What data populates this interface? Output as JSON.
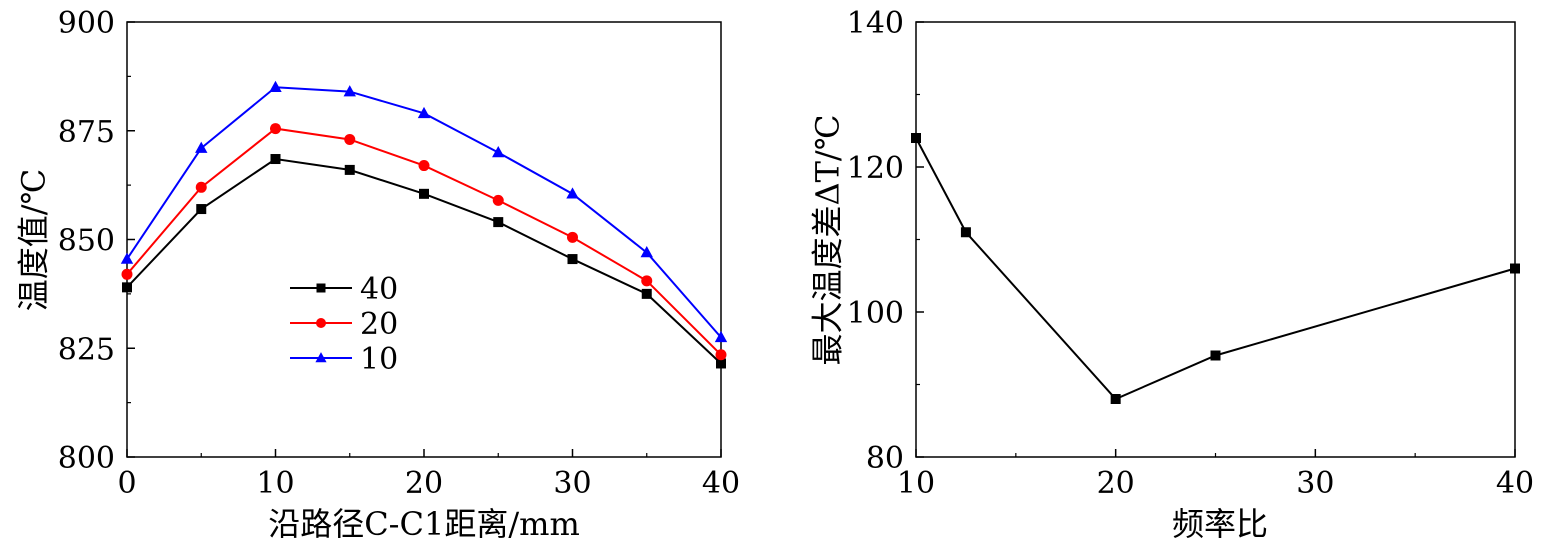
{
  "chart_data": [
    {
      "type": "line",
      "xlabel": "沿路径C-C1距离/mm",
      "ylabel": "温度值/℃",
      "xlim": [
        0,
        40
      ],
      "ylim": [
        800,
        900
      ],
      "xticks": [
        0,
        10,
        20,
        30,
        40
      ],
      "yticks": [
        800,
        825,
        850,
        875,
        900
      ],
      "grid": false,
      "legend_position": "center-left",
      "x": [
        0,
        5,
        10,
        15,
        20,
        25,
        30,
        35,
        40
      ],
      "series": [
        {
          "name": "40",
          "color": "#000000",
          "marker": "square",
          "values": [
            839,
            857,
            868.5,
            866,
            860.5,
            854,
            845.5,
            837.5,
            821.5
          ]
        },
        {
          "name": "20",
          "color": "#ff0000",
          "marker": "circle",
          "values": [
            842,
            862,
            875.5,
            873,
            867,
            859,
            850.5,
            840.5,
            823.5
          ]
        },
        {
          "name": "10",
          "color": "#0000ff",
          "marker": "triangle",
          "values": [
            845.5,
            871,
            885,
            884,
            879,
            870,
            860.5,
            847,
            827.5
          ]
        }
      ]
    },
    {
      "type": "line",
      "xlabel": "频率比",
      "ylabel": "最大温度差ΔT/℃",
      "xlim": [
        10,
        40
      ],
      "ylim": [
        80,
        140
      ],
      "xticks": [
        10,
        20,
        30,
        40
      ],
      "yticks": [
        80,
        100,
        120,
        140
      ],
      "grid": false,
      "x": [
        10,
        12.5,
        20,
        25,
        40
      ],
      "series": [
        {
          "color": "#000000",
          "marker": "square",
          "values": [
            124,
            111,
            88,
            94,
            106
          ]
        }
      ]
    }
  ]
}
